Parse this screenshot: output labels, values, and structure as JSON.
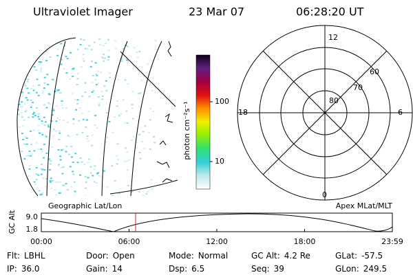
{
  "header": {
    "instrument": "Ultraviolet Imager",
    "date": "23 Mar 07",
    "time": "06:28:20 UT"
  },
  "colorbar": {
    "label": "photon cm⁻²s⁻¹",
    "ticks": [
      "100",
      "10"
    ]
  },
  "polar": {
    "mlt_labels": [
      "12",
      "6",
      "0",
      "18"
    ],
    "mlat_labels": [
      "60",
      "70",
      "80"
    ]
  },
  "panel_labels": {
    "left": "Geographic Lat/Lon",
    "right": "Apex MLat/MLT"
  },
  "altitude_plot": {
    "ylabel": "GC Alt",
    "yticks": [
      "9.0",
      "1.8"
    ],
    "xticks": [
      "00:00",
      "06:00",
      "12:00",
      "18:00",
      "23:59"
    ]
  },
  "info": [
    [
      [
        "Flt:",
        "LBHL"
      ],
      [
        "Door:",
        "Open"
      ],
      [
        "Mode:",
        "Normal"
      ],
      [
        "GC Alt:",
        "4.2 Re"
      ],
      [
        "GLat:",
        "-57.5"
      ]
    ],
    [
      [
        "IP:",
        "36.0"
      ],
      [
        "Gain:",
        "14"
      ],
      [
        "Dsp:",
        "6.5"
      ],
      [
        "Seq:",
        "39"
      ],
      [
        "GLon:",
        "249.5"
      ]
    ]
  ]
}
